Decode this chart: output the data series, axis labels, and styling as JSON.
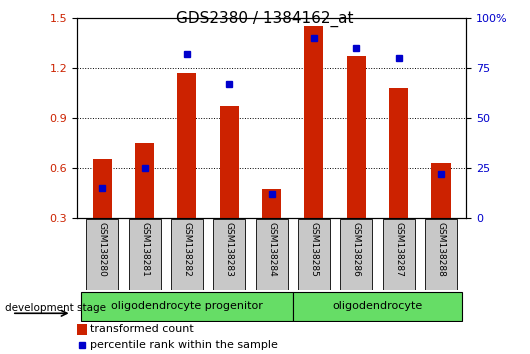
{
  "title": "GDS2380 / 1384162_at",
  "categories": [
    "GSM138280",
    "GSM138281",
    "GSM138282",
    "GSM138283",
    "GSM138284",
    "GSM138285",
    "GSM138286",
    "GSM138287",
    "GSM138288"
  ],
  "red_values": [
    0.65,
    0.75,
    1.17,
    0.97,
    0.47,
    1.45,
    1.27,
    1.08,
    0.63
  ],
  "blue_values": [
    15,
    25,
    82,
    67,
    12,
    90,
    85,
    80,
    22
  ],
  "ylim_left": [
    0.3,
    1.5
  ],
  "ylim_right": [
    0,
    100
  ],
  "yticks_left": [
    0.3,
    0.6,
    0.9,
    1.2,
    1.5
  ],
  "yticks_right": [
    0,
    25,
    50,
    75,
    100
  ],
  "ytick_labels_right": [
    "0",
    "25",
    "50",
    "75",
    "100%"
  ],
  "bar_color": "#CC2200",
  "dot_color": "#0000CC",
  "bar_width": 0.45,
  "bar_color_red": "#CC2200",
  "dot_color_blue": "#0000CC",
  "development_stage_label": "development stage",
  "legend_red": "transformed count",
  "legend_blue": "percentile rank within the sample",
  "title_fontsize": 11,
  "tick_fontsize": 8,
  "legend_fontsize": 8,
  "group1_label": "oligodendrocyte progenitor",
  "group2_label": "oligodendrocyte",
  "group_color": "#66DD66",
  "gsm_box_color": "#C8C8C8",
  "n_group1": 5,
  "n_group2": 4
}
